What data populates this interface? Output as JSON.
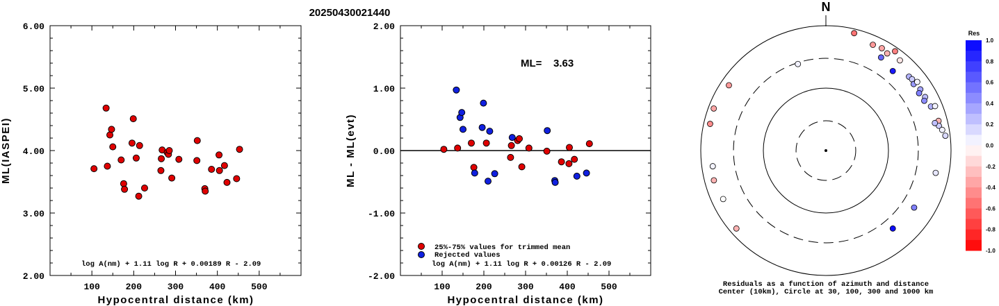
{
  "figure_title": "20250430021440",
  "colors": {
    "accepted": "#e00000",
    "rejected": "#1020e0"
  },
  "chart_data": [
    {
      "type": "scatter",
      "xlabel": "Hypocentral distance (km)",
      "ylabel": "ML(IASPEI)",
      "xlim": [
        0,
        600
      ],
      "ylim": [
        2.0,
        6.0
      ],
      "xticks": [
        "100",
        "200",
        "300",
        "400",
        "500"
      ],
      "yticks": [
        "2.00",
        "3.00",
        "4.00",
        "5.00",
        "6.00"
      ],
      "annotation": "log A(nm) + 1.11 log R + 0.00189 R - 2.09",
      "points": [
        {
          "x": 105,
          "y": 3.71
        },
        {
          "x": 134,
          "y": 4.68
        },
        {
          "x": 137,
          "y": 3.75
        },
        {
          "x": 143,
          "y": 4.25
        },
        {
          "x": 147,
          "y": 4.34
        },
        {
          "x": 150,
          "y": 4.06
        },
        {
          "x": 170,
          "y": 3.85
        },
        {
          "x": 176,
          "y": 3.47
        },
        {
          "x": 178,
          "y": 3.38
        },
        {
          "x": 196,
          "y": 4.12
        },
        {
          "x": 199,
          "y": 4.51
        },
        {
          "x": 206,
          "y": 3.88
        },
        {
          "x": 212,
          "y": 3.27
        },
        {
          "x": 214,
          "y": 4.08
        },
        {
          "x": 226,
          "y": 3.4
        },
        {
          "x": 265,
          "y": 3.68
        },
        {
          "x": 266,
          "y": 3.87
        },
        {
          "x": 268,
          "y": 4.01
        },
        {
          "x": 280,
          "y": 3.97
        },
        {
          "x": 283,
          "y": 3.94
        },
        {
          "x": 285,
          "y": 4.0
        },
        {
          "x": 291,
          "y": 3.56
        },
        {
          "x": 308,
          "y": 3.86
        },
        {
          "x": 351,
          "y": 3.84
        },
        {
          "x": 352,
          "y": 4.16
        },
        {
          "x": 370,
          "y": 3.39
        },
        {
          "x": 371,
          "y": 3.35
        },
        {
          "x": 386,
          "y": 3.7
        },
        {
          "x": 404,
          "y": 3.93
        },
        {
          "x": 405,
          "y": 3.68
        },
        {
          "x": 417,
          "y": 3.76
        },
        {
          "x": 423,
          "y": 3.49
        },
        {
          "x": 446,
          "y": 3.55
        },
        {
          "x": 453,
          "y": 4.02
        }
      ]
    },
    {
      "type": "scatter",
      "xlabel": "Hypocentral distance (km)",
      "ylabel": "ML - ML(evt)",
      "xlim": [
        0,
        600
      ],
      "ylim": [
        -2.0,
        2.0
      ],
      "xticks": [
        "100",
        "200",
        "300",
        "400",
        "500"
      ],
      "yticks": [
        "-2.00",
        "-1.00",
        "0.00",
        "1.00",
        "2.00"
      ],
      "ml_label": "ML=",
      "ml_value": "3.63",
      "annotation": "log A(nm) + 1.11 log R + 0.00126 R - 2.09",
      "legend": [
        "25%-75% values for trimmed mean",
        "Rejected values"
      ],
      "series": [
        {
          "name": "25%-75% values for trimmed mean",
          "points": [
            {
              "x": 104,
              "y": 0.02
            },
            {
              "x": 137,
              "y": 0.04
            },
            {
              "x": 170,
              "y": 0.12
            },
            {
              "x": 176,
              "y": -0.27
            },
            {
              "x": 206,
              "y": 0.12
            },
            {
              "x": 264,
              "y": -0.11
            },
            {
              "x": 266,
              "y": 0.08
            },
            {
              "x": 281,
              "y": 0.16
            },
            {
              "x": 285,
              "y": 0.19
            },
            {
              "x": 291,
              "y": -0.26
            },
            {
              "x": 308,
              "y": 0.04
            },
            {
              "x": 351,
              "y": -0.01
            },
            {
              "x": 386,
              "y": -0.18
            },
            {
              "x": 404,
              "y": -0.21
            },
            {
              "x": 405,
              "y": 0.05
            },
            {
              "x": 417,
              "y": -0.14
            },
            {
              "x": 453,
              "y": 0.11
            }
          ]
        },
        {
          "name": "Rejected values",
          "points": [
            {
              "x": 134,
              "y": 0.97
            },
            {
              "x": 143,
              "y": 0.53
            },
            {
              "x": 147,
              "y": 0.61
            },
            {
              "x": 150,
              "y": 0.34
            },
            {
              "x": 178,
              "y": -0.36
            },
            {
              "x": 196,
              "y": 0.37
            },
            {
              "x": 199,
              "y": 0.76
            },
            {
              "x": 210,
              "y": -0.49
            },
            {
              "x": 214,
              "y": 0.31
            },
            {
              "x": 226,
              "y": -0.37
            },
            {
              "x": 268,
              "y": 0.21
            },
            {
              "x": 352,
              "y": 0.32
            },
            {
              "x": 370,
              "y": -0.48
            },
            {
              "x": 371,
              "y": -0.51
            },
            {
              "x": 423,
              "y": -0.41
            },
            {
              "x": 446,
              "y": -0.36
            }
          ]
        }
      ]
    },
    {
      "type": "scatter",
      "north_label": "N",
      "colorbar_title": "Res",
      "colorbar_ticks": [
        "1.0",
        "0.8",
        "0.6",
        "0.4",
        "0.2",
        "0.0",
        "-0.2",
        "-0.4",
        "-0.6",
        "-0.8",
        "-1.0"
      ],
      "caption_line1": "Residuals as a function of azimuth and distance",
      "caption_line2": "Center (10km), Circle at 30, 100, 300 and 1000 km",
      "rings_km": [
        30,
        100,
        300,
        1000
      ],
      "points": [
        {
          "az": 13.5,
          "dist": 858,
          "res": -0.55
        },
        {
          "az": 23.9,
          "dist": 713,
          "res": -0.4
        },
        {
          "az": 28.6,
          "dist": 736,
          "res": -0.35
        },
        {
          "az": 32.2,
          "dist": 690,
          "res": -0.3
        },
        {
          "az": 34.8,
          "dist": 863,
          "res": -0.5
        },
        {
          "az": 39.3,
          "dist": 736,
          "res": -0.1
        },
        {
          "az": 30.6,
          "dist": 540,
          "res": 0.6
        },
        {
          "az": 40.0,
          "dist": 460,
          "res": 0.9
        },
        {
          "az": 48.3,
          "dist": 601,
          "res": 0.3
        },
        {
          "az": 50.3,
          "dist": 616,
          "res": 0.2
        },
        {
          "az": 52.8,
          "dist": 577,
          "res": 0.4
        },
        {
          "az": 53.0,
          "dist": 672,
          "res": 0.05
        },
        {
          "az": 57.0,
          "dist": 630,
          "res": 0.35
        },
        {
          "az": 58.3,
          "dist": 563,
          "res": 0.5
        },
        {
          "az": 61.6,
          "dist": 635,
          "res": 0.25
        },
        {
          "az": 63.1,
          "dist": 579,
          "res": 0.45
        },
        {
          "az": 67.2,
          "dist": 663,
          "res": 0.3
        },
        {
          "az": 67.8,
          "dist": 766,
          "res": 0.05
        },
        {
          "az": 75.2,
          "dist": 728,
          "res": -0.3
        },
        {
          "az": 77.6,
          "dist": 706,
          "res": 0.2
        },
        {
          "az": 75.8,
          "dist": 626,
          "res": 0.25
        },
        {
          "az": 79.9,
          "dist": 773,
          "res": 0.05
        },
        {
          "az": 82.9,
          "dist": 840,
          "res": 0.15
        },
        {
          "az": 101.5,
          "dist": 618,
          "res": 0.1
        },
        {
          "az": 122.9,
          "dist": 478,
          "res": 0.5
        },
        {
          "az": 139.4,
          "dist": 440,
          "res": 0.95
        },
        {
          "az": -17.9,
          "dist": 286,
          "res": 0.05
        },
        {
          "az": -56.0,
          "dist": 741,
          "res": -0.4
        },
        {
          "az": -69.4,
          "dist": 822,
          "res": -0.35
        },
        {
          "az": -77.0,
          "dist": 793,
          "res": -0.45
        },
        {
          "az": -97.9,
          "dist": 669,
          "res": 0.05
        },
        {
          "az": -104.9,
          "dist": 712,
          "res": -0.3
        },
        {
          "az": -115.3,
          "dist": 655,
          "res": 0.0
        },
        {
          "az": -131.1,
          "dist": 791,
          "res": -0.3
        }
      ]
    }
  ]
}
